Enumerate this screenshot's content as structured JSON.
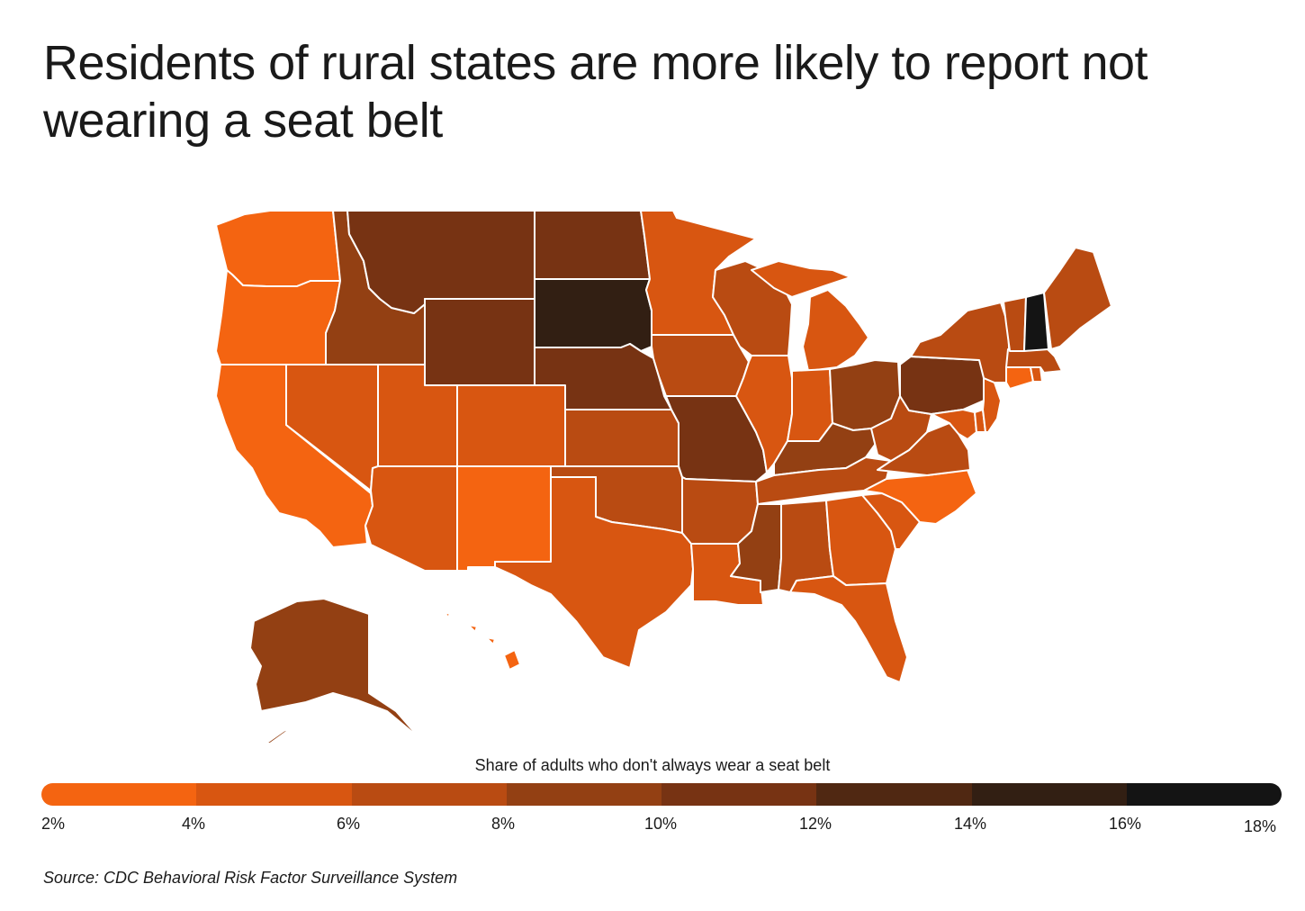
{
  "title": "Residents of rural states are more likely to report not wearing a seat belt",
  "legend": {
    "label": "Share of adults who don't always wear a seat belt",
    "ticks": [
      "2%",
      "4%",
      "6%",
      "8%",
      "10%",
      "12%",
      "14%",
      "16%",
      "18%"
    ],
    "colors": [
      "#f46411",
      "#d85611",
      "#b94b12",
      "#934013",
      "#773313",
      "#502812",
      "#321f13",
      "#141414"
    ]
  },
  "source": "Source: CDC Behavioral Risk Factor Surveillance System",
  "colors": {
    "background": "#ffffff",
    "border": "#ffffff"
  },
  "map_data": {
    "type": "choropleth",
    "region": "United States",
    "bins": [
      {
        "range": "2%-4%",
        "color": "#f46411",
        "states": [
          "WA",
          "OR",
          "CA",
          "NM",
          "NC",
          "HI",
          "CT"
        ]
      },
      {
        "range": "4%-6%",
        "color": "#d85611",
        "states": [
          "NV",
          "UT",
          "CO",
          "AZ",
          "TX",
          "LA",
          "IL",
          "IN",
          "MN",
          "MI",
          "FL",
          "GA",
          "SC",
          "NJ",
          "DE",
          "MD",
          "RI"
        ]
      },
      {
        "range": "6%-8%",
        "color": "#b94b12",
        "states": [
          "KS",
          "OK",
          "IA",
          "WI",
          "AR",
          "AL",
          "TN",
          "VA",
          "WV",
          "NY",
          "MA",
          "VT",
          "ME"
        ]
      },
      {
        "range": "8%-10%",
        "color": "#934013",
        "states": [
          "ID",
          "AK",
          "MS",
          "KY",
          "OH"
        ]
      },
      {
        "range": "10%-12%",
        "color": "#773313",
        "states": [
          "MT",
          "WY",
          "ND",
          "NE",
          "MO",
          "PA"
        ]
      },
      {
        "range": "14%-16%",
        "color": "#321f13",
        "states": [
          "SD"
        ]
      },
      {
        "range": "16%-18%",
        "color": "#141414",
        "states": [
          "NH"
        ]
      }
    ]
  }
}
